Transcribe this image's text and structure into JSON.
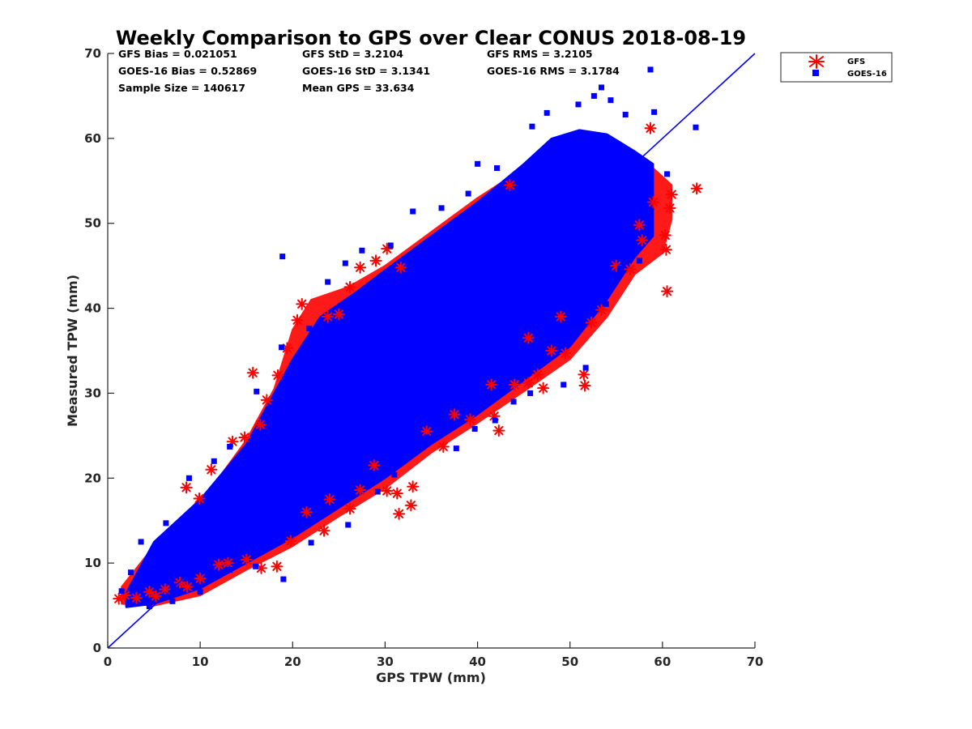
{
  "chart_data": {
    "type": "scatter",
    "title": "Weekly Comparison to GPS over Clear CONUS 2018-08-19",
    "xlabel": "GPS TPW (mm)",
    "ylabel": "Measured TPW (mm)",
    "xlim": [
      0,
      70
    ],
    "ylim": [
      0,
      70
    ],
    "xticks": [
      "0",
      "10",
      "20",
      "30",
      "40",
      "50",
      "60",
      "70"
    ],
    "yticks": [
      "0",
      "10",
      "20",
      "30",
      "40",
      "50",
      "60",
      "70"
    ],
    "grid": false,
    "legend_position": "outside-top-right",
    "stats": [
      [
        "GFS Bias = 0.021051",
        "GFS StD = 3.2104",
        "GFS RMS = 3.2105"
      ],
      [
        "GOES-16 Bias = 0.52869",
        "GOES-16 StD = 3.1341",
        "GOES-16 RMS = 3.1784"
      ],
      [
        "Sample Size = 140617",
        "Mean GPS = 33.634",
        ""
      ]
    ],
    "reference_line": {
      "x": [
        0,
        70
      ],
      "y": [
        0,
        70
      ],
      "color": "#0000ff"
    },
    "series": [
      {
        "name": "GFS",
        "marker": "asterisk",
        "color": "#ff0000",
        "points": [
          [
            1.2,
            5.8
          ],
          [
            1.9,
            6.2
          ],
          [
            3.1,
            5.9
          ],
          [
            4.5,
            6.6
          ],
          [
            6.2,
            6.9
          ],
          [
            7.8,
            7.7
          ],
          [
            8.5,
            18.9
          ],
          [
            9.9,
            17.6
          ],
          [
            11.2,
            21.0
          ],
          [
            13.5,
            24.3
          ],
          [
            14.8,
            24.8
          ],
          [
            15.7,
            32.4
          ],
          [
            16.5,
            26.3
          ],
          [
            17.2,
            29.2
          ],
          [
            18.4,
            32.1
          ],
          [
            19.4,
            35.3
          ],
          [
            20.5,
            38.6
          ],
          [
            21.0,
            40.5
          ],
          [
            23.8,
            39.0
          ],
          [
            25.0,
            39.3
          ],
          [
            26.2,
            42.5
          ],
          [
            27.3,
            44.8
          ],
          [
            29.0,
            45.6
          ],
          [
            30.2,
            47.0
          ],
          [
            31.7,
            44.8
          ],
          [
            8.6,
            7.2
          ],
          [
            10.0,
            8.2
          ],
          [
            13.0,
            10.0
          ],
          [
            15.0,
            10.4
          ],
          [
            16.6,
            9.4
          ],
          [
            18.3,
            9.6
          ],
          [
            19.8,
            12.6
          ],
          [
            23.4,
            13.8
          ],
          [
            26.2,
            16.4
          ],
          [
            27.3,
            18.6
          ],
          [
            30.2,
            18.5
          ],
          [
            31.3,
            18.2
          ],
          [
            31.5,
            15.8
          ],
          [
            32.8,
            16.8
          ],
          [
            33.0,
            19.0
          ],
          [
            36.3,
            23.7
          ],
          [
            39.2,
            26.9
          ],
          [
            41.8,
            27.3
          ],
          [
            42.3,
            25.6
          ],
          [
            44.0,
            31.0
          ],
          [
            45.5,
            31.2
          ],
          [
            46.5,
            32.2
          ],
          [
            47.1,
            30.6
          ],
          [
            48.0,
            35.0
          ],
          [
            49.5,
            34.7
          ],
          [
            51.5,
            32.2
          ],
          [
            51.6,
            30.9
          ],
          [
            52.3,
            38.3
          ],
          [
            53.4,
            39.8
          ],
          [
            55.0,
            45.0
          ],
          [
            56.5,
            44.6
          ],
          [
            57.8,
            48.0
          ],
          [
            58.7,
            61.2
          ],
          [
            60.3,
            48.6
          ],
          [
            60.4,
            46.9
          ],
          [
            60.5,
            42.0
          ],
          [
            60.8,
            51.8
          ],
          [
            61.0,
            53.4
          ],
          [
            63.7,
            54.1
          ],
          [
            59.0,
            52.5
          ],
          [
            57.5,
            49.8
          ],
          [
            49.0,
            39.0
          ],
          [
            45.5,
            36.5
          ],
          [
            41.5,
            31.0
          ],
          [
            37.5,
            27.5
          ],
          [
            34.5,
            25.5
          ],
          [
            28.8,
            21.5
          ],
          [
            24.0,
            17.5
          ],
          [
            21.5,
            16.0
          ],
          [
            43.5,
            54.5
          ],
          [
            12.0,
            9.8
          ],
          [
            5.2,
            6.1
          ]
        ]
      },
      {
        "name": "GOES-16",
        "marker": "square",
        "color": "#0000ff",
        "points": [
          [
            1.5,
            6.7
          ],
          [
            2.5,
            8.9
          ],
          [
            3.6,
            12.5
          ],
          [
            6.3,
            14.7
          ],
          [
            8.8,
            20.0
          ],
          [
            11.5,
            22.0
          ],
          [
            13.2,
            23.7
          ],
          [
            16.1,
            30.2
          ],
          [
            18.8,
            35.4
          ],
          [
            18.9,
            46.1
          ],
          [
            21.8,
            37.6
          ],
          [
            23.8,
            43.1
          ],
          [
            25.7,
            45.3
          ],
          [
            27.5,
            46.8
          ],
          [
            30.6,
            47.4
          ],
          [
            33.0,
            51.4
          ],
          [
            36.1,
            51.8
          ],
          [
            39.0,
            53.5
          ],
          [
            40.0,
            57.0
          ],
          [
            42.1,
            56.5
          ],
          [
            45.9,
            61.4
          ],
          [
            47.5,
            63.0
          ],
          [
            50.9,
            64.0
          ],
          [
            52.6,
            65.0
          ],
          [
            53.4,
            66.0
          ],
          [
            54.4,
            64.5
          ],
          [
            56.0,
            62.8
          ],
          [
            58.7,
            68.1
          ],
          [
            59.1,
            63.1
          ],
          [
            63.6,
            61.3
          ],
          [
            60.5,
            55.8
          ],
          [
            57.5,
            45.6
          ],
          [
            55.4,
            44.7
          ],
          [
            53.9,
            40.5
          ],
          [
            51.7,
            33.0
          ],
          [
            49.3,
            31.0
          ],
          [
            45.7,
            30.0
          ],
          [
            43.9,
            29.0
          ],
          [
            41.9,
            26.8
          ],
          [
            39.7,
            25.8
          ],
          [
            37.7,
            23.5
          ],
          [
            34.5,
            24.8
          ],
          [
            31.0,
            20.4
          ],
          [
            29.2,
            18.4
          ],
          [
            26.0,
            14.5
          ],
          [
            22.0,
            12.4
          ],
          [
            19.0,
            8.1
          ],
          [
            16.0,
            9.6
          ],
          [
            13.2,
            9.2
          ],
          [
            10.0,
            6.6
          ],
          [
            7.0,
            5.5
          ],
          [
            4.5,
            4.9
          ],
          [
            2.2,
            5.2
          ],
          [
            3.0,
            7.5
          ],
          [
            5.5,
            10.2
          ],
          [
            12.0,
            16.5
          ],
          [
            20.0,
            25.0
          ],
          [
            28.0,
            33.0
          ],
          [
            35.0,
            38.5
          ],
          [
            42.0,
            44.5
          ],
          [
            48.0,
            49.0
          ],
          [
            55.0,
            54.5
          ],
          [
            38.5,
            35.0
          ],
          [
            30.5,
            28.0
          ],
          [
            24.5,
            21.0
          ],
          [
            45.0,
            42.5
          ],
          [
            52.0,
            50.5
          ],
          [
            58.0,
            56.0
          ]
        ]
      }
    ]
  }
}
